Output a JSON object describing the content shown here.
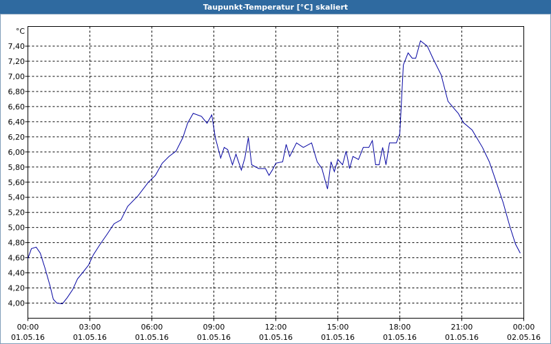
{
  "chart_data": {
    "type": "line",
    "title": "Taupunkt-Temperatur [°C] skaliert",
    "y_unit": "°C",
    "xlim": [
      0,
      24
    ],
    "ylim": [
      3.8,
      7.66
    ],
    "grid": true,
    "xticks": [
      {
        "value": 0,
        "label": "00:00"
      },
      {
        "value": 3,
        "label": "03:00"
      },
      {
        "value": 6,
        "label": "06:00"
      },
      {
        "value": 9,
        "label": "09:00"
      },
      {
        "value": 12,
        "label": "12:00"
      },
      {
        "value": 15,
        "label": "15:00"
      },
      {
        "value": 18,
        "label": "18:00"
      },
      {
        "value": 21,
        "label": "21:00"
      },
      {
        "value": 24,
        "label": "00:00"
      }
    ],
    "xtick_dates": [
      "01.05.16",
      "01.05.16",
      "01.05.16",
      "01.05.16",
      "01.05.16",
      "01.05.16",
      "01.05.16",
      "01.05.16",
      "02.05.16"
    ],
    "yticks": [
      {
        "value": 4.0,
        "label": "4,00"
      },
      {
        "value": 4.2,
        "label": "4,20"
      },
      {
        "value": 4.4,
        "label": "4,40"
      },
      {
        "value": 4.6,
        "label": "4,60"
      },
      {
        "value": 4.8,
        "label": "4,80"
      },
      {
        "value": 5.0,
        "label": "5,00"
      },
      {
        "value": 5.2,
        "label": "5,20"
      },
      {
        "value": 5.4,
        "label": "5,40"
      },
      {
        "value": 5.6,
        "label": "5,60"
      },
      {
        "value": 5.8,
        "label": "5,80"
      },
      {
        "value": 6.0,
        "label": "6,00"
      },
      {
        "value": 6.2,
        "label": "6,20"
      },
      {
        "value": 6.4,
        "label": "6,40"
      },
      {
        "value": 6.6,
        "label": "6,60"
      },
      {
        "value": 6.8,
        "label": "6,80"
      },
      {
        "value": 7.0,
        "label": "7,00"
      },
      {
        "value": 7.2,
        "label": "7,20"
      },
      {
        "value": 7.4,
        "label": "7,40"
      }
    ],
    "color": "#0000a0",
    "x": [
      0,
      0.17,
      0.4,
      0.6,
      0.83,
      1.07,
      1.23,
      1.4,
      1.67,
      1.9,
      2.17,
      2.4,
      2.67,
      2.93,
      3.17,
      3.5,
      3.83,
      4.17,
      4.5,
      4.83,
      5.33,
      5.83,
      6.17,
      6.5,
      6.83,
      7.17,
      7.5,
      7.73,
      8.0,
      8.4,
      8.67,
      8.9,
      9.07,
      9.33,
      9.5,
      9.67,
      9.9,
      10.07,
      10.33,
      10.5,
      10.67,
      10.83,
      11.17,
      11.5,
      11.67,
      11.83,
      12.0,
      12.33,
      12.5,
      12.67,
      13.0,
      13.33,
      13.73,
      14.0,
      14.23,
      14.5,
      14.67,
      14.83,
      15.0,
      15.23,
      15.4,
      15.57,
      15.73,
      16.0,
      16.23,
      16.5,
      16.67,
      16.83,
      17.0,
      17.17,
      17.33,
      17.5,
      17.83,
      18.0,
      18.17,
      18.4,
      18.6,
      18.77,
      19.0,
      19.33,
      19.6,
      20.0,
      20.33,
      20.67,
      20.83,
      21.07,
      21.5,
      22.0,
      22.33,
      22.67,
      23.0,
      23.33,
      23.6,
      23.83
    ],
    "values": [
      4.59,
      4.72,
      4.74,
      4.66,
      4.46,
      4.23,
      4.05,
      4.0,
      3.99,
      4.07,
      4.18,
      4.32,
      4.41,
      4.5,
      4.64,
      4.78,
      4.91,
      5.05,
      5.1,
      5.28,
      5.42,
      5.6,
      5.69,
      5.85,
      5.94,
      6.01,
      6.19,
      6.38,
      6.51,
      6.47,
      6.38,
      6.49,
      6.19,
      5.92,
      6.06,
      6.03,
      5.83,
      5.97,
      5.76,
      5.92,
      6.19,
      5.83,
      5.78,
      5.78,
      5.69,
      5.76,
      5.85,
      5.87,
      6.1,
      5.94,
      6.12,
      6.06,
      6.12,
      5.87,
      5.78,
      5.51,
      5.87,
      5.74,
      5.9,
      5.83,
      6.01,
      5.78,
      5.94,
      5.9,
      6.06,
      6.06,
      6.15,
      5.83,
      5.83,
      6.06,
      5.83,
      6.12,
      6.12,
      6.24,
      7.15,
      7.31,
      7.24,
      7.24,
      7.47,
      7.4,
      7.24,
      7.02,
      6.67,
      6.56,
      6.51,
      6.39,
      6.29,
      6.06,
      5.87,
      5.6,
      5.33,
      5.01,
      4.78,
      4.66
    ]
  }
}
